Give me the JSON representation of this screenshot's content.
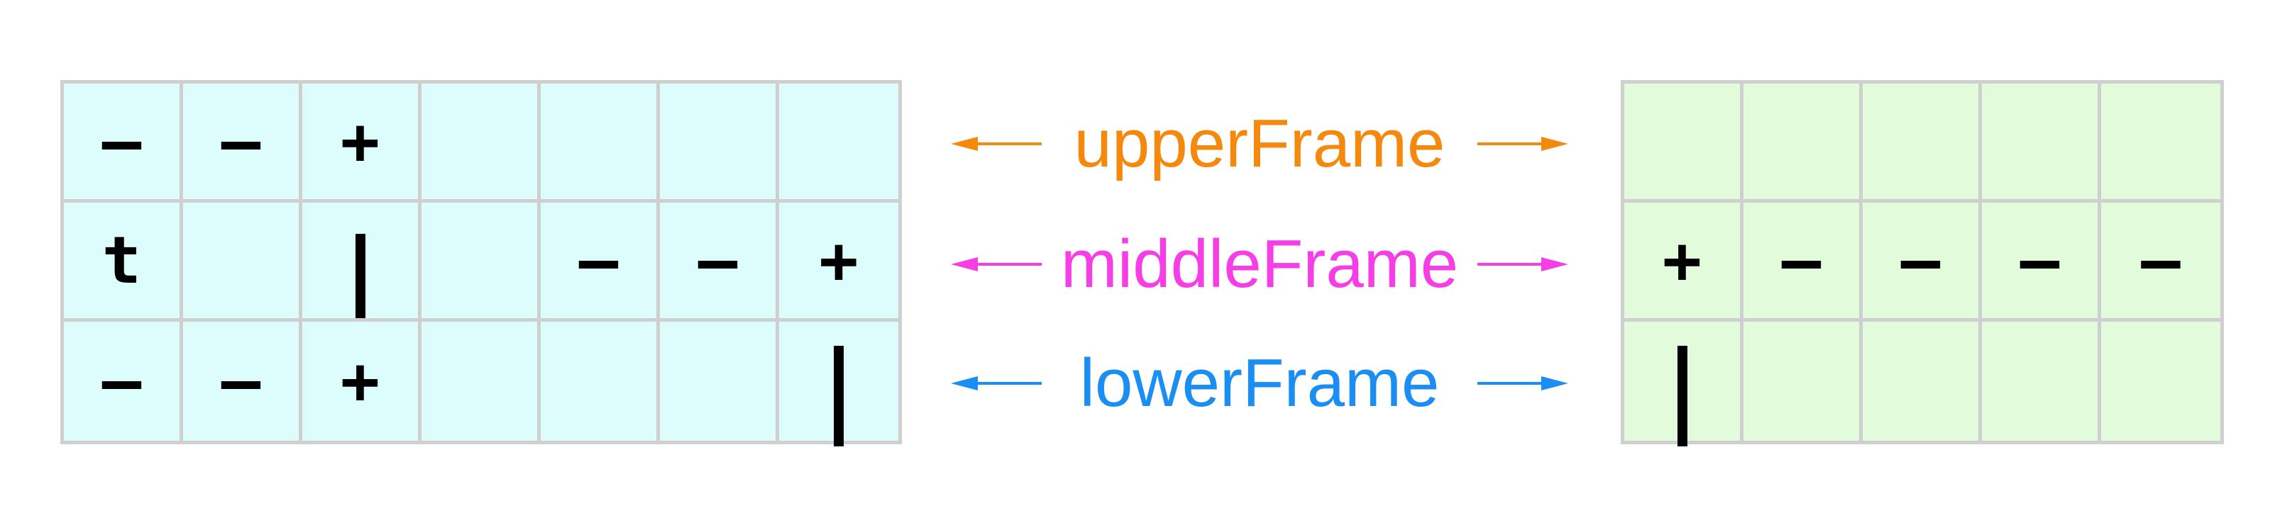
{
  "left_grid": {
    "rows": [
      [
        "–",
        "–",
        "+",
        "",
        "",
        "",
        ""
      ],
      [
        "t",
        "",
        "|",
        "",
        "–",
        "–",
        "+"
      ],
      [
        "–",
        "–",
        "+",
        "",
        "",
        "",
        "|"
      ]
    ]
  },
  "right_grid": {
    "rows": [
      [
        "",
        "",
        "",
        "",
        ""
      ],
      [
        "+",
        "–",
        "–",
        "–",
        "–"
      ],
      [
        "|",
        "",
        "",
        "",
        ""
      ]
    ]
  },
  "labels": [
    {
      "text": "upperFrame",
      "color": "#f5890d"
    },
    {
      "text": "middleFrame",
      "color": "#f63ee7"
    },
    {
      "text": "lowerFrame",
      "color": "#1a8ef2"
    }
  ],
  "colors": {
    "left_fill": "#dcfdfb",
    "right_fill": "#e2fbda",
    "grid_line": "#cfcfcf",
    "symbol": "#000000"
  },
  "icons": {
    "left_arrow": "left-arrow-icon",
    "right_arrow": "right-arrow-icon"
  }
}
